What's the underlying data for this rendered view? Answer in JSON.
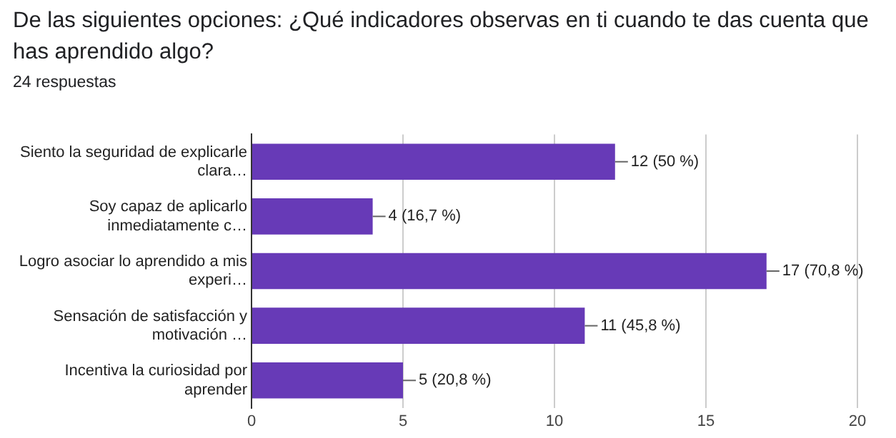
{
  "chart_data": {
    "type": "bar",
    "orientation": "horizontal",
    "title": "De las siguientes opciones: ¿Qué indicadores observas en ti cuando te das cuenta que has aprendido algo?",
    "subtitle": "24 respuestas",
    "categories": [
      "Siento la seguridad de explicarle\nclara…",
      "Soy capaz de aplicarlo\ninmediatamente c…",
      "Logro asociar lo aprendido a mis\nexperi…",
      "Sensación de satisfacción y\nmotivación …",
      "Incentiva la curiosidad por\naprender"
    ],
    "values": [
      12,
      4,
      17,
      11,
      5
    ],
    "color": "#673ab7",
    "value_labels": [
      "12 (50 %)",
      "4 (16,7 %)",
      "17 (70,8 %)",
      "11 (45,8 %)",
      "5 (20,8 %)"
    ],
    "xlim": [
      0,
      20
    ],
    "xticks": [
      0,
      5,
      10,
      15,
      20
    ],
    "grid": "x",
    "legend": false
  }
}
